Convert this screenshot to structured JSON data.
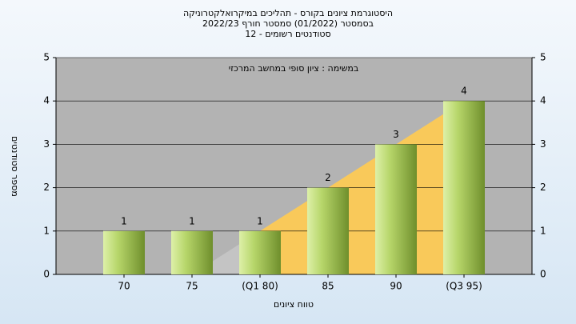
{
  "chart_data": {
    "type": "bar",
    "title": [
      "היסטוגרמת ציונים בקורס - תהליכים במיקרואלקטרוניקה",
      "בסמסטר (01/2022) סמסטר חורף 2022/23",
      "סטודנטים רשומים - 12"
    ],
    "annotation": "במשימה : ציון סופי במחשב המרכזי",
    "x_label": "טווח ציונים",
    "y_label": "מספר סטודנטים",
    "categories": [
      "70",
      "75",
      "(Q1 80)",
      "85",
      "90",
      "(Q3 95)"
    ],
    "values": [
      1,
      1,
      1,
      2,
      3,
      4
    ],
    "color": "#6f8f2c",
    "ylim": [
      0,
      5
    ],
    "yticks": [
      0,
      1,
      2,
      3,
      4,
      5
    ],
    "grid": true
  }
}
